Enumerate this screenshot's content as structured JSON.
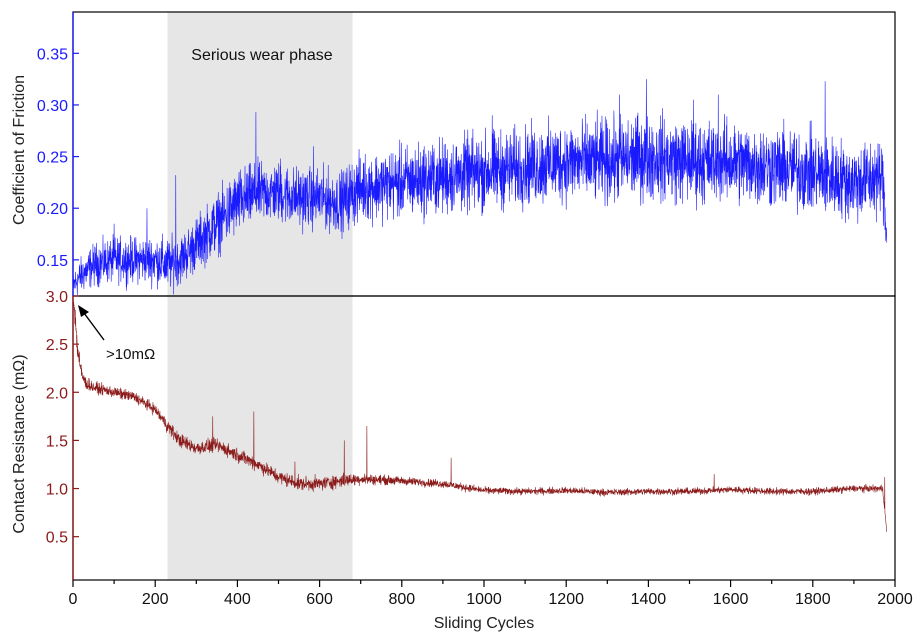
{
  "chart_data": {
    "type": "line",
    "shared_x": {
      "label": "Sliding Cycles",
      "lim": [
        0,
        2000
      ],
      "ticks": [
        0,
        200,
        400,
        600,
        800,
        1000,
        1200,
        1400,
        1600,
        1800,
        2000
      ],
      "minor_step": 100
    },
    "shaded_region": {
      "x": [
        230,
        680
      ],
      "label": "Serious wear phase",
      "color": "#e6e6e6"
    },
    "panels": [
      {
        "name": "friction",
        "ylabel": "Coefficient of Friction",
        "ylim": [
          0.115,
          0.39
        ],
        "yticks": [
          0.15,
          0.2,
          0.25,
          0.3,
          0.35
        ],
        "color": "#1a1aff",
        "series": [
          {
            "x": [
              0,
              20,
              50,
              100,
              150,
              200,
              230,
              260,
              300,
              350,
              400,
              450,
              500,
              550,
              600,
              650,
              680,
              700,
              800,
              900,
              1000,
              1100,
              1200,
              1300,
              1400,
              1500,
              1600,
              1700,
              1800,
              1900,
              1970,
              1980
            ],
            "values": [
              0.125,
              0.135,
              0.145,
              0.15,
              0.15,
              0.15,
              0.145,
              0.15,
              0.165,
              0.185,
              0.205,
              0.215,
              0.215,
              0.21,
              0.21,
              0.205,
              0.215,
              0.22,
              0.225,
              0.23,
              0.235,
              0.24,
              0.245,
              0.245,
              0.25,
              0.245,
              0.245,
              0.24,
              0.235,
              0.225,
              0.23,
              0.17
            ],
            "noise": [
              0.01,
              0.012,
              0.014,
              0.015,
              0.015,
              0.016,
              0.018,
              0.016,
              0.018,
              0.02,
              0.022,
              0.02,
              0.02,
              0.02,
              0.02,
              0.02,
              0.022,
              0.022,
              0.024,
              0.025,
              0.026,
              0.026,
              0.027,
              0.028,
              0.028,
              0.028,
              0.027,
              0.027,
              0.027,
              0.026,
              0.026,
              0.01
            ],
            "spikes": [
              [
                100,
                0.185
              ],
              [
                180,
                0.2
              ],
              [
                250,
                0.232
              ],
              [
                445,
                0.293
              ],
              [
                505,
                0.248
              ],
              [
                585,
                0.26
              ],
              [
                1020,
                0.29
              ],
              [
                1330,
                0.31
              ],
              [
                1395,
                0.325
              ],
              [
                1510,
                0.305
              ],
              [
                1570,
                0.31
              ],
              [
                1830,
                0.323
              ]
            ]
          }
        ]
      },
      {
        "name": "resistance",
        "ylabel": "Contact Resistance (mΩ)",
        "ylim": [
          0.05,
          3.0
        ],
        "yticks": [
          0.5,
          1.0,
          1.5,
          2.0,
          2.5,
          3.0
        ],
        "color": "#8b1a1a",
        "annotation": {
          "text": ">10mΩ",
          "x": 20,
          "y": 2.92
        },
        "series": [
          {
            "x": [
              0,
              5,
              10,
              20,
              30,
              50,
              100,
              150,
              200,
              230,
              260,
              300,
              350,
              400,
              450,
              500,
              550,
              600,
              650,
              700,
              800,
              900,
              1000,
              1100,
              1200,
              1300,
              1400,
              1500,
              1600,
              1700,
              1800,
              1900,
              1970,
              1980
            ],
            "values": [
              3.0,
              2.8,
              2.5,
              2.2,
              2.1,
              2.05,
              2.0,
              1.95,
              1.82,
              1.65,
              1.5,
              1.42,
              1.45,
              1.35,
              1.25,
              1.12,
              1.05,
              1.05,
              1.08,
              1.1,
              1.08,
              1.05,
              0.98,
              0.97,
              0.98,
              0.96,
              0.97,
              0.97,
              0.99,
              0.97,
              0.97,
              1.0,
              1.0,
              0.55
            ],
            "noise": [
              0.05,
              0.1,
              0.1,
              0.07,
              0.05,
              0.04,
              0.04,
              0.04,
              0.04,
              0.05,
              0.05,
              0.05,
              0.05,
              0.05,
              0.05,
              0.05,
              0.05,
              0.05,
              0.05,
              0.04,
              0.03,
              0.03,
              0.025,
              0.025,
              0.025,
              0.025,
              0.025,
              0.025,
              0.025,
              0.025,
              0.025,
              0.025,
              0.025,
              0.02
            ],
            "spikes": [
              [
                340,
                1.75
              ],
              [
                440,
                1.8
              ],
              [
                540,
                1.28
              ],
              [
                660,
                1.5
              ],
              [
                715,
                1.65
              ],
              [
                920,
                1.32
              ],
              [
                1560,
                1.15
              ],
              [
                1975,
                1.12
              ]
            ]
          }
        ]
      }
    ]
  }
}
